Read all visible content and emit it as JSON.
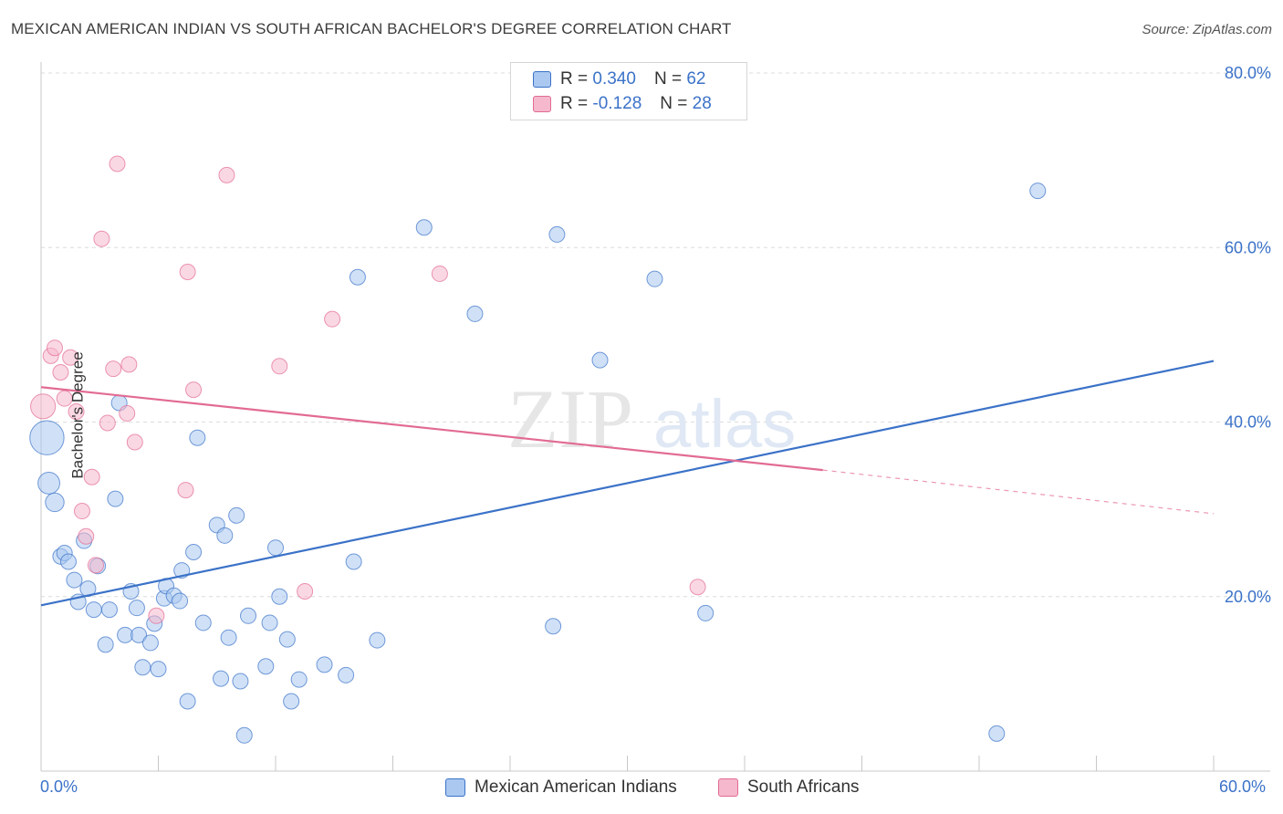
{
  "title": "MEXICAN AMERICAN INDIAN VS SOUTH AFRICAN BACHELOR'S DEGREE CORRELATION CHART",
  "source": "Source: ZipAtlas.com",
  "watermark": {
    "part1": "ZIP",
    "part2": "atlas"
  },
  "legend": {
    "rows": [
      {
        "r_label": "R =",
        "r_value": "0.340",
        "n_label": "N =",
        "n_value": "62"
      },
      {
        "r_label": "R =",
        "r_value": "-0.128",
        "n_label": "N =",
        "n_value": "28"
      }
    ]
  },
  "bottom_legend": [
    "Mexican American Indians",
    "South Africans"
  ],
  "x_labels": {
    "left": "0.0%",
    "right": "60.0%"
  },
  "chart_data": {
    "type": "scatter",
    "ylabel": "Bachelor's Degree",
    "xlim": [
      0,
      60
    ],
    "ylim": [
      0,
      80
    ],
    "y_ticks": [
      20,
      40,
      60,
      80
    ],
    "y_tick_labels": [
      "20.0%",
      "40.0%",
      "60.0%",
      "80.0%"
    ],
    "grid": true,
    "colors": {
      "blue": "#3b72c8",
      "blue_fill": "#aac8f0",
      "pink": "#e26b93",
      "pink_fill": "#f5b8cc",
      "text_blue": "#3b72c8"
    },
    "series": [
      {
        "name": "Mexican American Indians",
        "color": "#3b72c8",
        "fill": "#aac8f0",
        "trend": {
          "x": [
            0,
            60
          ],
          "y": [
            19.0,
            47.0
          ]
        },
        "points": [
          [
            0.3,
            38.2,
            2.2
          ],
          [
            0.4,
            33.0,
            1.4
          ],
          [
            0.7,
            30.8,
            1.2
          ],
          [
            1.0,
            24.6,
            1.0
          ],
          [
            1.2,
            25.0,
            1.0
          ],
          [
            1.4,
            24.0,
            1.0
          ],
          [
            1.7,
            21.9,
            1.0
          ],
          [
            1.9,
            19.4,
            1.0
          ],
          [
            2.2,
            26.4,
            1.0
          ],
          [
            2.4,
            20.9,
            1.0
          ],
          [
            2.7,
            18.5,
            1.0
          ],
          [
            2.9,
            23.5,
            1.0
          ],
          [
            3.3,
            14.5,
            1.0
          ],
          [
            3.5,
            18.5,
            1.0
          ],
          [
            3.8,
            31.2,
            1.0
          ],
          [
            4.0,
            42.2,
            1.0
          ],
          [
            4.3,
            15.6,
            1.0
          ],
          [
            4.6,
            20.6,
            1.0
          ],
          [
            4.9,
            18.7,
            1.0
          ],
          [
            5.0,
            15.6,
            1.0
          ],
          [
            5.2,
            11.9,
            1.0
          ],
          [
            5.6,
            14.7,
            1.0
          ],
          [
            5.8,
            16.9,
            1.0
          ],
          [
            6.0,
            11.7,
            1.0
          ],
          [
            6.3,
            19.8,
            1.0
          ],
          [
            6.4,
            21.2,
            1.0
          ],
          [
            6.8,
            20.1,
            1.0
          ],
          [
            7.1,
            19.5,
            1.0
          ],
          [
            7.2,
            23.0,
            1.0
          ],
          [
            7.5,
            8.0,
            1.0
          ],
          [
            7.8,
            25.1,
            1.0
          ],
          [
            8.0,
            38.2,
            1.0
          ],
          [
            8.3,
            17.0,
            1.0
          ],
          [
            9.0,
            28.2,
            1.0
          ],
          [
            9.2,
            10.6,
            1.0
          ],
          [
            9.4,
            27.0,
            1.0
          ],
          [
            9.6,
            15.3,
            1.0
          ],
          [
            10.0,
            29.3,
            1.0
          ],
          [
            10.2,
            10.3,
            1.0
          ],
          [
            10.4,
            4.1,
            1.0
          ],
          [
            10.6,
            17.8,
            1.0
          ],
          [
            11.5,
            12.0,
            1.0
          ],
          [
            11.7,
            17.0,
            1.0
          ],
          [
            12.0,
            25.6,
            1.0
          ],
          [
            12.2,
            20.0,
            1.0
          ],
          [
            12.6,
            15.1,
            1.0
          ],
          [
            12.8,
            8.0,
            1.0
          ],
          [
            13.2,
            10.5,
            1.0
          ],
          [
            14.5,
            12.2,
            1.0
          ],
          [
            15.6,
            11.0,
            1.0
          ],
          [
            16.0,
            24.0,
            1.0
          ],
          [
            16.2,
            56.6,
            1.0
          ],
          [
            17.2,
            15.0,
            1.0
          ],
          [
            19.6,
            62.3,
            1.0
          ],
          [
            22.2,
            52.4,
            1.0
          ],
          [
            26.2,
            16.6,
            1.0
          ],
          [
            26.4,
            61.5,
            1.0
          ],
          [
            28.6,
            47.1,
            1.0
          ],
          [
            31.4,
            56.4,
            1.0
          ],
          [
            34.0,
            18.1,
            1.0
          ],
          [
            48.9,
            4.3,
            1.0
          ],
          [
            51.0,
            66.5,
            1.0
          ]
        ]
      },
      {
        "name": "South Africans",
        "color": "#e26b93",
        "fill": "#f5b8cc",
        "trend": {
          "x": [
            0,
            40
          ],
          "y": [
            44.0,
            34.5
          ]
        },
        "trend_dash": {
          "x": [
            40,
            60
          ],
          "y": [
            34.5,
            29.5
          ]
        },
        "points": [
          [
            0.1,
            41.8,
            1.6
          ],
          [
            0.5,
            47.6,
            1.0
          ],
          [
            0.7,
            48.5,
            1.0
          ],
          [
            1.0,
            45.7,
            1.0
          ],
          [
            1.2,
            42.7,
            1.0
          ],
          [
            1.5,
            47.4,
            1.0
          ],
          [
            1.8,
            41.2,
            1.0
          ],
          [
            2.1,
            29.8,
            1.0
          ],
          [
            2.3,
            26.9,
            1.0
          ],
          [
            2.6,
            33.7,
            1.0
          ],
          [
            2.8,
            23.6,
            1.0
          ],
          [
            3.1,
            61.0,
            1.0
          ],
          [
            3.4,
            39.9,
            1.0
          ],
          [
            3.7,
            46.1,
            1.0
          ],
          [
            3.9,
            69.6,
            1.0
          ],
          [
            4.4,
            41.0,
            1.0
          ],
          [
            4.5,
            46.6,
            1.0
          ],
          [
            4.8,
            37.7,
            1.0
          ],
          [
            5.9,
            17.8,
            1.0
          ],
          [
            7.4,
            32.2,
            1.0
          ],
          [
            7.5,
            57.2,
            1.0
          ],
          [
            7.8,
            43.7,
            1.0
          ],
          [
            9.5,
            68.3,
            1.0
          ],
          [
            12.2,
            46.4,
            1.0
          ],
          [
            13.5,
            20.6,
            1.0
          ],
          [
            14.9,
            51.8,
            1.0
          ],
          [
            20.4,
            57.0,
            1.0
          ],
          [
            33.6,
            21.1,
            1.0
          ]
        ]
      }
    ]
  }
}
